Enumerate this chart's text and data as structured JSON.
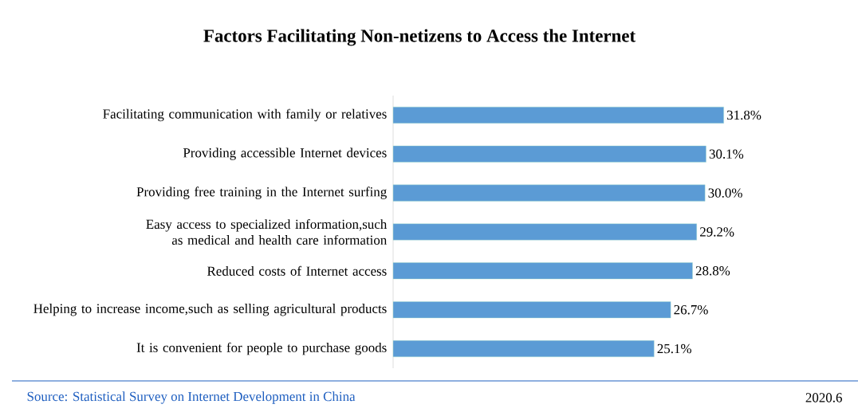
{
  "chart_data": {
    "type": "bar",
    "orientation": "horizontal",
    "title": "Factors Facilitating Non-netizens to Access the Internet",
    "categories": [
      "Facilitating communication with family or relatives",
      "Providing accessible Internet devices",
      "Providing free training in the Internet surfing",
      "Easy access to specialized information,such as medical and health care information",
      "Reduced costs of Internet access",
      "Helping to increase income,such as selling agricultural products",
      "It is convenient for people to purchase goods"
    ],
    "values": [
      31.8,
      30.1,
      30.0,
      29.2,
      28.8,
      26.7,
      25.1
    ],
    "value_labels": [
      "31.8%",
      "30.1%",
      "30.0%",
      "29.2%",
      "28.8%",
      "26.7%",
      "25.1%"
    ],
    "color": "#5b9bd5",
    "annotations": [
      "Source: Statistical Survey on Internet Development in China",
      "2020.6"
    ]
  }
}
